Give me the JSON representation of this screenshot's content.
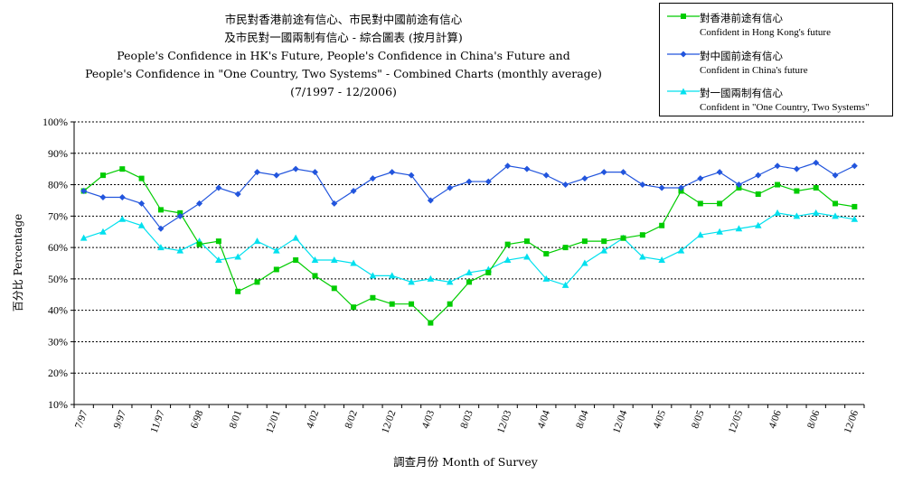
{
  "chart_data": {
    "type": "line",
    "title_lines": [
      "市民對香港前途有信心、市民對中國前途有信心",
      "及市民對一國兩制有信心 - 綜合圖表 (按月計算)",
      "People's Confidence in HK's Future, People's Confidence in China's Future and",
      "People's Confidence in \"One Country, Two Systems\" - Combined Charts (monthly average)",
      "(7/1997 - 12/2006)"
    ],
    "xlabel": "調查月份 Month of Survey",
    "ylabel": "百分比 Percentage",
    "ylim": [
      10,
      100
    ],
    "yticks": [
      "10%",
      "20%",
      "30%",
      "40%",
      "50%",
      "60%",
      "70%",
      "80%",
      "90%",
      "100%"
    ],
    "grid": "horizontal dotted",
    "legend_position": "top-right",
    "x_tick_labels": [
      "7/97",
      "9/97",
      "11/97",
      "6/98",
      "8/01",
      "12/01",
      "4/02",
      "8/02",
      "12/02",
      "4/03",
      "8/03",
      "12/03",
      "4/04",
      "8/04",
      "12/04",
      "4/05",
      "8/05",
      "12/05",
      "4/06",
      "8/06",
      "12/06"
    ],
    "series": [
      {
        "name_zh": "對香港前途有信心",
        "name_en": "Confident in Hong Kong's future",
        "color": "#00cc00",
        "marker": "square",
        "values": [
          78,
          83,
          85,
          82,
          72,
          71,
          61,
          62,
          46,
          49,
          53,
          56,
          51,
          47,
          41,
          44,
          42,
          42,
          36,
          42,
          49,
          52,
          61,
          62,
          58,
          60,
          62,
          62,
          63,
          64,
          67,
          78,
          74,
          74,
          79,
          77,
          80,
          78,
          79,
          74,
          73
        ]
      },
      {
        "name_zh": "對中國前途有信心",
        "name_en": "Confident in China's future",
        "color": "#2255dd",
        "marker": "diamond",
        "values": [
          78,
          76,
          76,
          74,
          66,
          70,
          74,
          79,
          77,
          84,
          83,
          85,
          84,
          74,
          78,
          82,
          84,
          83,
          75,
          79,
          81,
          81,
          86,
          85,
          83,
          80,
          82,
          84,
          84,
          80,
          79,
          79,
          82,
          84,
          80,
          83,
          86,
          85,
          87,
          83,
          86
        ]
      },
      {
        "name_zh": "對一國兩制有信心",
        "name_en": "Confident in \"One Country, Two Systems\"",
        "color": "#00e0ee",
        "marker": "triangle",
        "values": [
          63,
          65,
          69,
          67,
          60,
          59,
          62,
          56,
          57,
          62,
          59,
          63,
          56,
          56,
          55,
          51,
          51,
          49,
          50,
          49,
          52,
          53,
          56,
          57,
          50,
          48,
          55,
          59,
          63,
          57,
          56,
          59,
          64,
          65,
          66,
          67,
          71,
          70,
          71,
          70,
          69
        ]
      }
    ]
  }
}
